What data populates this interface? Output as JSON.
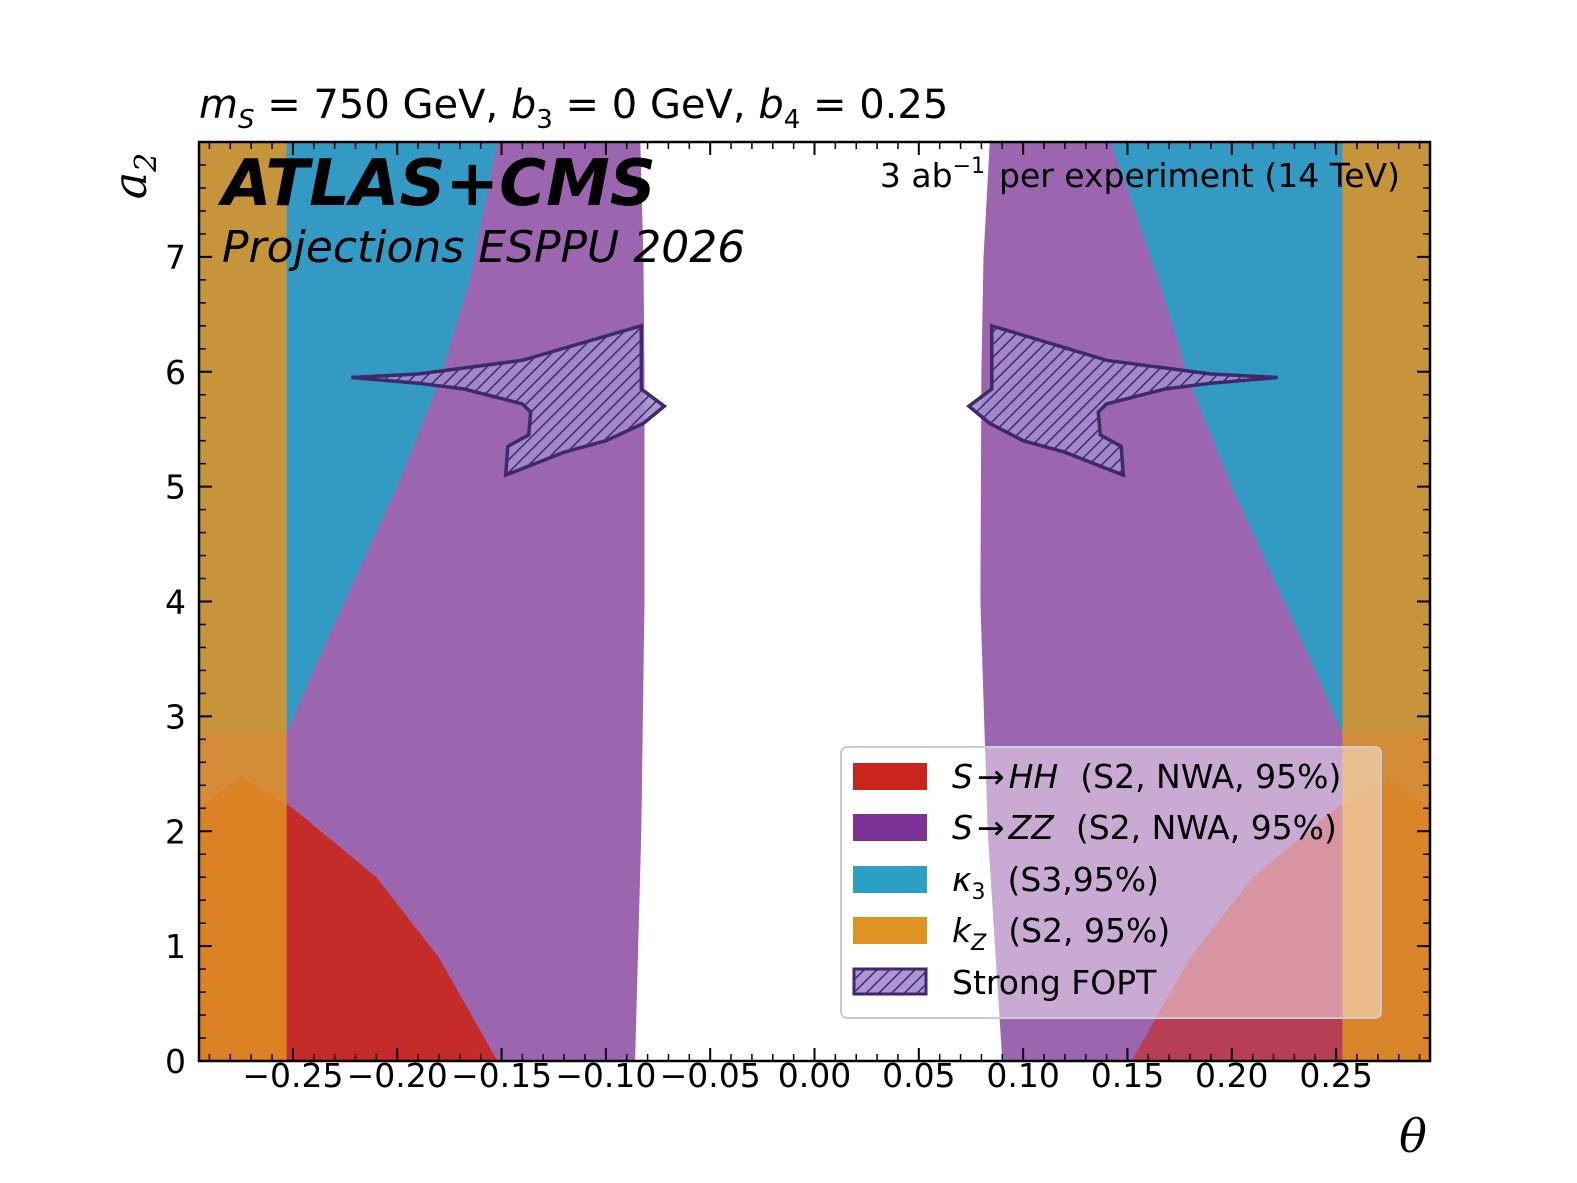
{
  "chart_data": {
    "type": "area",
    "title_parts": {
      "ms_sym": "m",
      "ms_sub": "S",
      "ms_val": " = 750 GeV, ",
      "b3_sym": "b",
      "b3_sub": "3",
      "b3_val": " = 0 GeV, ",
      "b4_sym": "b",
      "b4_sub": "4",
      "b4_val": " = 0.25"
    },
    "experiment": {
      "atlas": "ATLAS",
      "plus_cms": "+CMS",
      "subtitle": "Projections ESPPU 2026",
      "lumi_main": "3 ab",
      "lumi_exp": "−1",
      "lumi_rest": "per experiment (14 TeV)"
    },
    "xlabel": "θ",
    "ylabel_sym": "a",
    "ylabel_sub": "2",
    "xlim": [
      -0.295,
      0.295
    ],
    "ylim": [
      0,
      8
    ],
    "xticks": [
      -0.25,
      -0.2,
      -0.15,
      -0.1,
      -0.05,
      0.0,
      0.05,
      0.1,
      0.15,
      0.2,
      0.25
    ],
    "xtick_labels": [
      "−0.25",
      "−0.20",
      "−0.15",
      "−0.10",
      "−0.05",
      "0.00",
      "0.05",
      "0.10",
      "0.15",
      "0.20",
      "0.25"
    ],
    "yticks": [
      0,
      1,
      2,
      3,
      4,
      5,
      6,
      7
    ],
    "ytick_labels": [
      "0",
      "1",
      "2",
      "3",
      "4",
      "5",
      "6",
      "7"
    ],
    "grid": false,
    "legend_position": "lower-right",
    "legend": [
      {
        "sym": "S",
        "arrow": "→",
        "proc": "HH",
        "detail": "(S2, NWA, 95%)",
        "color": "#c8261b"
      },
      {
        "sym": "S",
        "arrow": "→",
        "proc": "ZZ",
        "detail": "(S2, NWA, 95%)",
        "color": "#7b3294"
      },
      {
        "sym": "κ",
        "sub": "3",
        "detail": "(S3,95%)",
        "color": "#2aa0c4"
      },
      {
        "sym": "k",
        "sub": "Z",
        "detail": "(S2, 95%)",
        "color": "#df9323"
      },
      {
        "label": "Strong FOPT",
        "color": "#3d2a6b",
        "hatched": true
      }
    ],
    "series": [
      {
        "name": "k_Z (S2, 95%)",
        "excluded_theta_abs_above": 0.253
      },
      {
        "name": "κ3 (S3,95%)",
        "boundary_left": [
          [
            -0.253,
            2.85
          ],
          [
            -0.24,
            3.4
          ],
          [
            -0.22,
            4.2
          ],
          [
            -0.2,
            5.0
          ],
          [
            -0.18,
            5.9
          ],
          [
            -0.165,
            6.8
          ],
          [
            -0.152,
            8.0
          ]
        ],
        "boundary_right": [
          [
            0.253,
            2.85
          ],
          [
            0.24,
            3.4
          ],
          [
            0.22,
            4.2
          ],
          [
            0.2,
            5.0
          ],
          [
            0.18,
            5.9
          ],
          [
            0.165,
            6.8
          ],
          [
            0.142,
            8.0
          ]
        ]
      },
      {
        "name": "S→ZZ (S2, NWA, 95%)",
        "allowed_inner_left": [
          [
            -0.086,
            0.0
          ],
          [
            -0.083,
            2.0
          ],
          [
            -0.0815,
            4.0
          ],
          [
            -0.0815,
            6.0
          ],
          [
            -0.082,
            7.0
          ],
          [
            -0.0835,
            8.0
          ]
        ],
        "allowed_inner_right": [
          [
            0.09,
            0.0
          ],
          [
            0.083,
            2.0
          ],
          [
            0.0795,
            4.0
          ],
          [
            0.08,
            6.0
          ],
          [
            0.081,
            7.0
          ],
          [
            0.084,
            8.0
          ]
        ]
      },
      {
        "name": "S→HH (S2, NWA, 95%)",
        "boundary_left": [
          [
            -0.295,
            2.2
          ],
          [
            -0.275,
            2.48
          ],
          [
            -0.25,
            2.2
          ],
          [
            -0.21,
            1.6
          ],
          [
            -0.18,
            0.9
          ],
          [
            -0.152,
            0.0
          ]
        ],
        "boundary_right": [
          [
            0.152,
            0.0
          ],
          [
            0.18,
            0.9
          ],
          [
            0.21,
            1.6
          ],
          [
            0.25,
            2.2
          ],
          [
            0.275,
            2.48
          ],
          [
            0.295,
            2.2
          ]
        ]
      },
      {
        "name": "Strong FOPT",
        "region_left": [
          [
            -0.222,
            5.95
          ],
          [
            -0.19,
            5.98
          ],
          [
            -0.14,
            6.1
          ],
          [
            -0.083,
            6.4
          ],
          [
            -0.083,
            5.85
          ],
          [
            -0.072,
            5.7
          ],
          [
            -0.082,
            5.55
          ],
          [
            -0.1,
            5.4
          ],
          [
            -0.12,
            5.3
          ],
          [
            -0.148,
            5.1
          ],
          [
            -0.147,
            5.35
          ],
          [
            -0.137,
            5.45
          ],
          [
            -0.136,
            5.65
          ],
          [
            -0.14,
            5.72
          ],
          [
            -0.168,
            5.85
          ],
          [
            -0.19,
            5.9
          ]
        ],
        "region_right": [
          [
            0.222,
            5.95
          ],
          [
            0.19,
            5.98
          ],
          [
            0.14,
            6.1
          ],
          [
            0.085,
            6.4
          ],
          [
            0.085,
            5.85
          ],
          [
            0.074,
            5.7
          ],
          [
            0.084,
            5.55
          ],
          [
            0.1,
            5.4
          ],
          [
            0.12,
            5.3
          ],
          [
            0.148,
            5.1
          ],
          [
            0.147,
            5.35
          ],
          [
            0.137,
            5.45
          ],
          [
            0.136,
            5.65
          ],
          [
            0.14,
            5.72
          ],
          [
            0.168,
            5.85
          ],
          [
            0.19,
            5.9
          ]
        ]
      }
    ],
    "colors": {
      "hh": "#c8261b",
      "zz": "#7b3294",
      "k3": "#2aa0c4",
      "kz": "#df9323",
      "fopt": "#3d2a6b"
    }
  }
}
